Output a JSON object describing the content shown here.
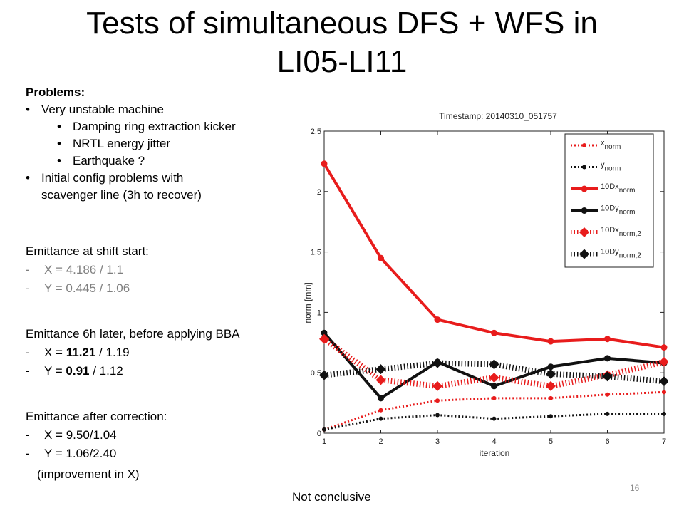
{
  "slide": {
    "title_line1": "Tests of simultaneous DFS + WFS in",
    "title_line2": "LI05-LI11",
    "page_number": "16",
    "conclusion": "Not conclusive"
  },
  "problems": {
    "heading": "Problems:",
    "item1": "Very unstable machine",
    "sub1": "Damping ring extraction kicker",
    "sub2": "NRTL energy jitter",
    "sub3": "Earthquake ?",
    "item2_line1": "Initial config problems with",
    "item2_line2": "scavenger line (3h to recover)"
  },
  "emittance": {
    "start_heading": "Emittance at shift start:",
    "start_x": "X = 4.186 / 1.1",
    "start_y": "Y = 0.445 / 1.06",
    "later_heading": "Emittance 6h later, before applying BBA",
    "later_x_prefix": "X = ",
    "later_x_bold": "11.21",
    "later_x_rest": " / 1.19",
    "later_y_prefix": "Y = ",
    "later_y_bold": "0.91",
    "later_y_rest": " / 1.12",
    "after_heading": "Emittance after correction:",
    "after_x": "X = 9.50/1.04",
    "after_y": "Y = 1.06/2.40",
    "after_note": "(improvement in X)",
    "dash": "-"
  },
  "chart_data": {
    "type": "line",
    "title": "Timestamp: 20140310_051757",
    "xlabel": "iteration",
    "ylabel": "norm [mm]",
    "x": [
      1,
      2,
      3,
      4,
      5,
      6,
      7
    ],
    "xlim": [
      1,
      7
    ],
    "ylim": [
      0,
      2.5
    ],
    "xticks": [
      "1",
      "2",
      "3",
      "4",
      "5",
      "6",
      "7"
    ],
    "yticks": [
      "0",
      "0.5",
      "1",
      "1.5",
      "2",
      "2.5"
    ],
    "legend_position": "top-right",
    "series": [
      {
        "name": "x_norm",
        "label_main": "x",
        "label_sub": "norm",
        "color": "#e81c1c",
        "style": "dotted",
        "marker": "dot",
        "values": [
          0.03,
          0.19,
          0.27,
          0.29,
          0.29,
          0.32,
          0.34
        ]
      },
      {
        "name": "y_norm",
        "label_main": "y",
        "label_sub": "norm",
        "color": "#111111",
        "style": "dotted",
        "marker": "dot",
        "values": [
          0.03,
          0.12,
          0.15,
          0.12,
          0.14,
          0.16,
          0.16
        ]
      },
      {
        "name": "10Dx_norm",
        "label_main": "10Dx",
        "label_sub": "norm",
        "color": "#e81c1c",
        "style": "solid",
        "marker": "dot",
        "values": [
          2.23,
          1.45,
          0.94,
          0.83,
          0.76,
          0.78,
          0.71
        ]
      },
      {
        "name": "10Dy_norm",
        "label_main": "10Dy",
        "label_sub": "norm",
        "color": "#111111",
        "style": "solid",
        "marker": "dot",
        "values": [
          0.83,
          0.29,
          0.59,
          0.39,
          0.55,
          0.62,
          0.58
        ]
      },
      {
        "name": "10Dx_norm,2",
        "label_main": "10Dx",
        "label_sub": "norm,2",
        "color": "#e81c1c",
        "style": "dotted-thick",
        "marker": "diamond",
        "values": [
          0.78,
          0.44,
          0.39,
          0.46,
          0.39,
          0.48,
          0.59
        ]
      },
      {
        "name": "10Dy_norm,2",
        "label_main": "10Dy",
        "label_sub": "norm,2",
        "color": "#111111",
        "style": "dotted-thick",
        "marker": "diamond",
        "values": [
          0.48,
          0.53,
          0.58,
          0.57,
          0.49,
          0.47,
          0.43
        ]
      }
    ]
  }
}
